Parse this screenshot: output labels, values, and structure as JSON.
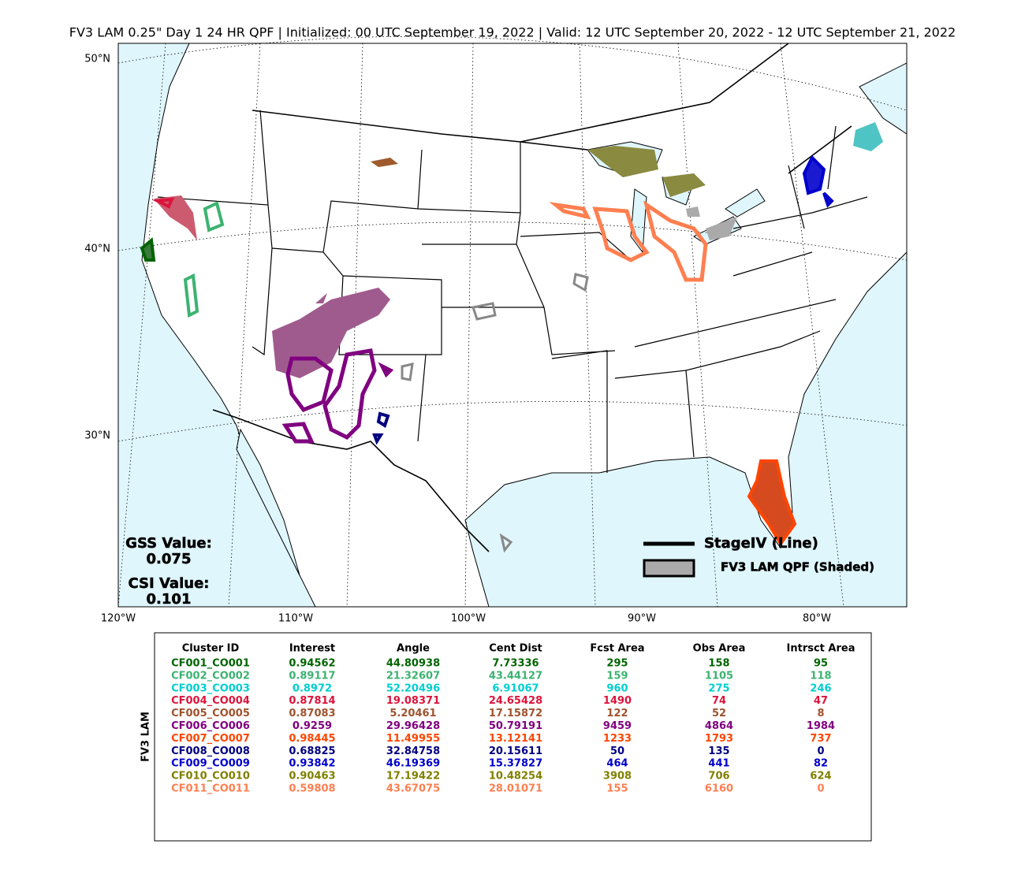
{
  "title": "FV3 LAM 0.25\" Day 1 24 HR QPF | Initialized: 00 UTC September 19, 2022 | Valid: 12 UTC September 20, 2022 - 12 UTC September 21, 2022",
  "map": {
    "lat_labels": [
      "50°N",
      "40°N",
      "30°N"
    ],
    "lon_labels": [
      "120°W",
      "110°W",
      "100°W",
      "90°W",
      "80°W"
    ],
    "gss_label": "GSS Value:",
    "gss_value": 0.075,
    "csi_label": "CSI Value:",
    "csi_value": 0.101,
    "legend": [
      "StageIV (Line)",
      "FV3 LAM QPF (Shaded)"
    ]
  },
  "table": {
    "side_label": "FV3 LAM",
    "headers": [
      "Cluster ID",
      "Interest",
      "Angle",
      "Cent Dist",
      "Fcst Area",
      "Obs Area",
      "Intrsct Area"
    ],
    "rows": [
      {
        "color": "#006400",
        "cells": [
          "CF001_CO001",
          0.94562,
          44.80938,
          7.73336,
          295,
          158,
          95
        ]
      },
      {
        "color": "#3cb371",
        "cells": [
          "CF002_CO002",
          0.89117,
          21.32607,
          43.44127,
          159,
          1105,
          118
        ]
      },
      {
        "color": "#00ced1",
        "cells": [
          "CF003_CO003",
          0.8972,
          52.20496,
          6.91067,
          960,
          275,
          246
        ]
      },
      {
        "color": "#dc143c",
        "cells": [
          "CF004_CO004",
          0.87814,
          19.08371,
          24.65428,
          1490,
          74,
          47
        ]
      },
      {
        "color": "#a0522d",
        "cells": [
          "CF005_CO005",
          0.87083,
          5.20461,
          17.15872,
          122,
          52,
          8
        ]
      },
      {
        "color": "#800080",
        "cells": [
          "CF006_CO006",
          0.9259,
          29.96428,
          50.79191,
          9459,
          4864,
          1984
        ]
      },
      {
        "color": "#ff4500",
        "cells": [
          "CF007_CO007",
          0.98445,
          11.49955,
          13.12141,
          1233,
          1793,
          737
        ]
      },
      {
        "color": "#000080",
        "cells": [
          "CF008_CO008",
          0.68825,
          32.84758,
          20.15611,
          50,
          135,
          0
        ]
      },
      {
        "color": "#0000cd",
        "cells": [
          "CF009_CO009",
          0.93842,
          46.19369,
          15.37827,
          464,
          441,
          82
        ]
      },
      {
        "color": "#808000",
        "cells": [
          "CF010_CO010",
          0.90463,
          17.19422,
          10.48254,
          3908,
          706,
          624
        ]
      },
      {
        "color": "#ff7f50",
        "cells": [
          "CF011_CO011",
          0.59808,
          43.67075,
          28.01071,
          155,
          6160,
          0
        ]
      }
    ]
  }
}
